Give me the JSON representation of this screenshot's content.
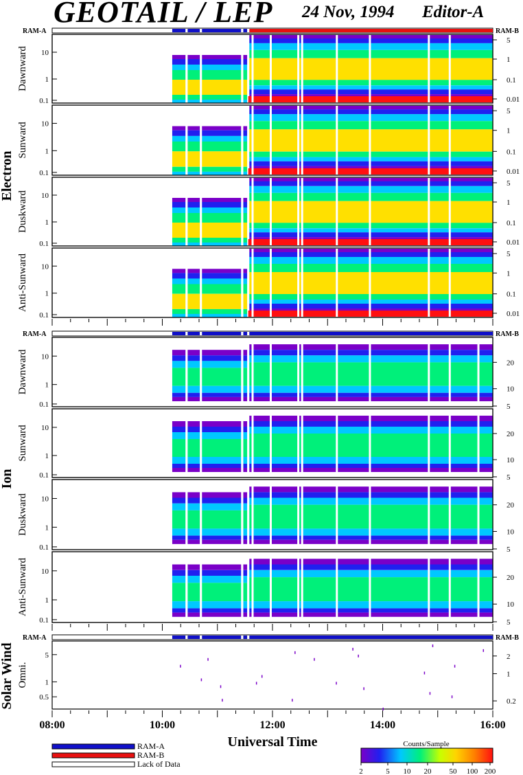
{
  "header": {
    "title": "GEOTAIL / LEP",
    "date": "24 Nov, 1994",
    "editor": "Editor-A"
  },
  "colors": {
    "ram_a": "#1010c8",
    "ram_b": "#e81010",
    "lack_of_data": "#ffffff"
  },
  "sections": {
    "electron": {
      "label": "Electron"
    },
    "ion": {
      "label": "Ion"
    },
    "solar_wind": {
      "label": "Solar Wind"
    }
  },
  "ram_bar_labels": {
    "left": "RAM-A",
    "right": "RAM-B"
  },
  "x_axis": {
    "label": "Universal Time",
    "ticks": [
      "08:00",
      "10:00",
      "12:00",
      "14:00",
      "16:00"
    ]
  },
  "legend": {
    "ram_a": "RAM-A",
    "ram_b": "RAM-B",
    "lack": "Lack of Data"
  },
  "colorbar": {
    "title": "Counts/Sample",
    "ticks": [
      "2",
      "5",
      "10",
      "20",
      "50",
      "100",
      "200"
    ],
    "stops": [
      "#7a00c8",
      "#2020f0",
      "#00c8ff",
      "#00f07a",
      "#c8ff00",
      "#ffd400",
      "#ff8000",
      "#ff1010"
    ]
  },
  "chart_data": {
    "type": "heatmap",
    "x_range_hours": [
      8,
      16
    ],
    "panels": [
      {
        "group": "Electron",
        "label": "Dawnward",
        "left_ticks": [
          "10",
          "1",
          "0.1"
        ],
        "right_ticks": [
          "5",
          "1",
          "0.1",
          "0.01"
        ]
      },
      {
        "group": "Electron",
        "label": "Sunward",
        "left_ticks": [
          "10",
          "1",
          "0.1"
        ],
        "right_ticks": [
          "5",
          "1",
          "0.1",
          "0.01"
        ]
      },
      {
        "group": "Electron",
        "label": "Duskward",
        "left_ticks": [
          "10",
          "1",
          "0.1"
        ],
        "right_ticks": [
          "5",
          "1",
          "0.1",
          "0.01"
        ]
      },
      {
        "group": "Electron",
        "label": "Anti-Sunward",
        "left_ticks": [
          "10",
          "1",
          "0.1"
        ],
        "right_ticks": [
          "5",
          "1",
          "0.1",
          "0.01"
        ]
      },
      {
        "group": "Ion",
        "label": "Dawnward",
        "left_ticks": [
          "10",
          "1",
          "0.1"
        ],
        "right_ticks": [
          "20",
          "10",
          "5"
        ]
      },
      {
        "group": "Ion",
        "label": "Sunward",
        "left_ticks": [
          "10",
          "1",
          "0.1"
        ],
        "right_ticks": [
          "20",
          "10",
          "5"
        ]
      },
      {
        "group": "Ion",
        "label": "Duskward",
        "left_ticks": [
          "10",
          "1",
          "0.1"
        ],
        "right_ticks": [
          "20",
          "10",
          "5"
        ]
      },
      {
        "group": "Ion",
        "label": "Anti-Sunward",
        "left_ticks": [
          "10",
          "1",
          "0.1"
        ],
        "right_ticks": [
          "20",
          "10",
          "5"
        ]
      },
      {
        "group": "Solar Wind",
        "label": "Omni.",
        "left_ticks": [
          "5",
          "1",
          "0.5"
        ],
        "right_ticks": [
          "2",
          "1",
          "0.2"
        ]
      }
    ],
    "data_segments_hours": [
      [
        10.18,
        10.42
      ],
      [
        10.46,
        10.68
      ],
      [
        10.72,
        11.43
      ],
      [
        11.47,
        11.54
      ],
      [
        11.58,
        16.0
      ]
    ],
    "electron_ram_b_start_hour": 11.54,
    "electron_low_energy_red_start_hour": 11.56,
    "electron_red_start_hour": 11.58,
    "electron_red_end_hour": 16.0,
    "electron_white_gap_hours": [
      11.62,
      11.95,
      12.45,
      12.52,
      13.15,
      13.75,
      14.82,
      15.2
    ],
    "ion_white_gap_hours": [
      11.62,
      11.95,
      12.45,
      12.52,
      13.15,
      13.75,
      14.82,
      15.2,
      15.72
    ]
  }
}
